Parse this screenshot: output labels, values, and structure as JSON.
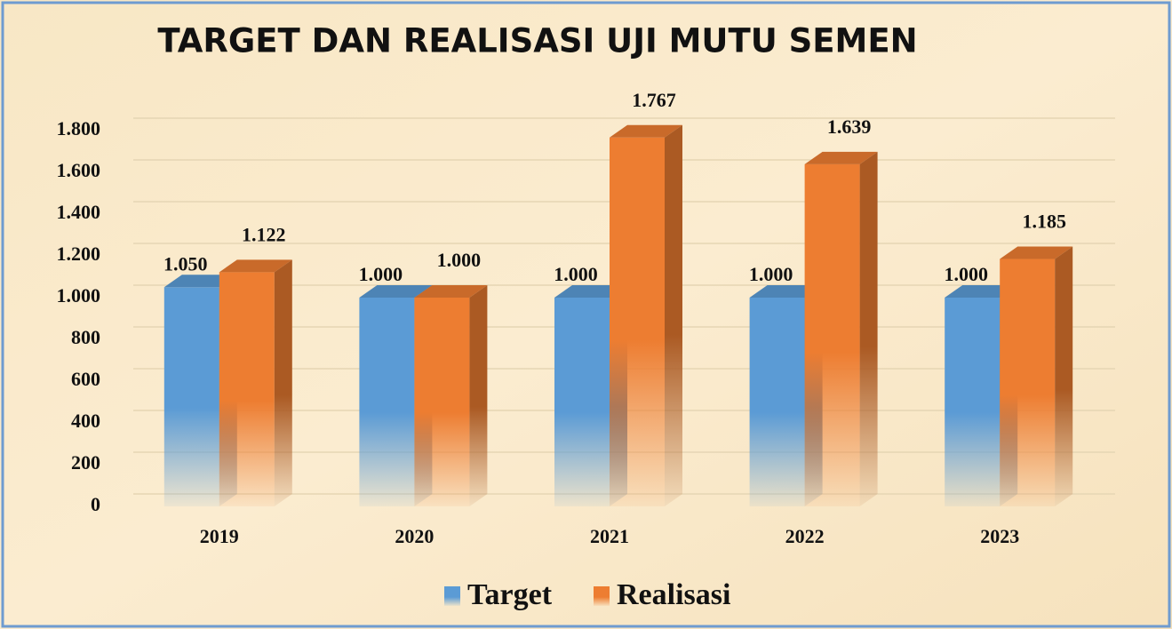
{
  "chart_data": {
    "type": "bar3d",
    "title": "TARGET DAN REALISASI UJI MUTU SEMEN",
    "categories": [
      "2019",
      "2020",
      "2021",
      "2022",
      "2023"
    ],
    "series": [
      {
        "name": "Target",
        "color": "#5b9bd5",
        "values": [
          1050,
          1000,
          1000,
          1000,
          1000
        ],
        "value_labels": [
          "1.050",
          "1.000",
          "1.000",
          "1.000",
          "1.000"
        ]
      },
      {
        "name": "Realisasi",
        "color": "#ed7d31",
        "values": [
          1122,
          1000,
          1767,
          1639,
          1185
        ],
        "value_labels": [
          "1.122",
          "1.000",
          "1.767",
          "1.639",
          "1.185"
        ]
      }
    ],
    "ylim": [
      0,
      1800
    ],
    "yticks": [
      0,
      200,
      400,
      600,
      800,
      {
        "value": 1000,
        "label": "1.000"
      },
      {
        "value": 1200,
        "label": "1.200"
      },
      {
        "value": 1400,
        "label": "1.400"
      },
      {
        "value": 1600,
        "label": "1.600"
      },
      {
        "value": 1800,
        "label": "1.800"
      }
    ],
    "grid": true,
    "legend": "bottom"
  }
}
